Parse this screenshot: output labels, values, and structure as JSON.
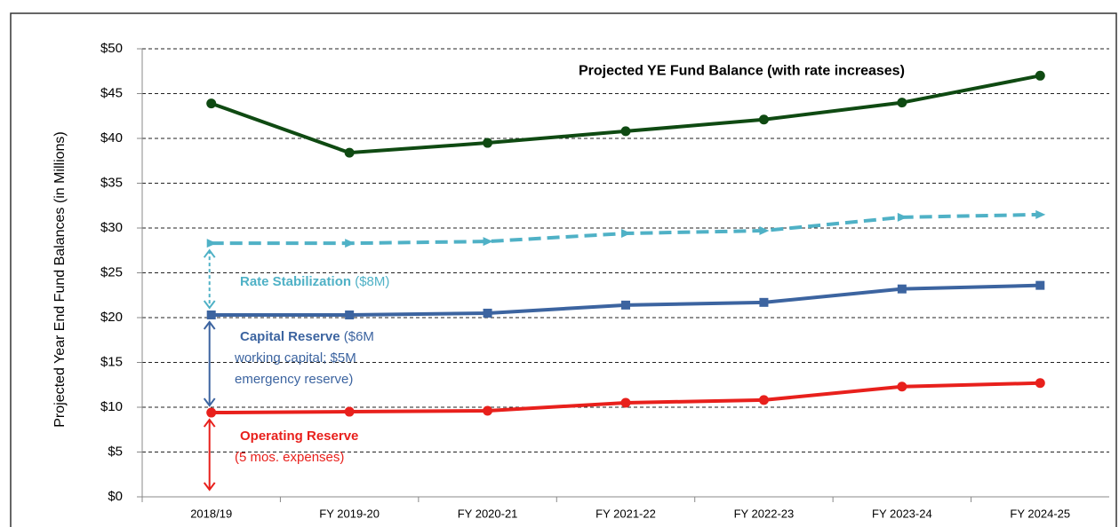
{
  "chart_data": {
    "type": "line",
    "y_label": "Projected Year End Fund Balances (in Millions)",
    "categories": [
      "2018/19",
      "FY 2019-20",
      "FY 2020-21",
      "FY 2021-22",
      "FY 2022-23",
      "FY 2023-24",
      "FY 2024-25"
    ],
    "ylim": [
      0,
      50
    ],
    "yticks": [
      {
        "value": 0,
        "label": "$0"
      },
      {
        "value": 5,
        "label": "$5"
      },
      {
        "value": 10,
        "label": "$10"
      },
      {
        "value": 15,
        "label": "$15"
      },
      {
        "value": 20,
        "label": "$20"
      },
      {
        "value": 25,
        "label": "$25"
      },
      {
        "value": 30,
        "label": "$30"
      },
      {
        "value": 35,
        "label": "$35"
      },
      {
        "value": 40,
        "label": "$40"
      },
      {
        "value": 45,
        "label": "$45"
      },
      {
        "value": 50,
        "label": "$50"
      }
    ],
    "grid": true,
    "series": [
      {
        "name": "Projected YE Fund Balance (with rate increases)",
        "color": "#0f4a12",
        "marker": "circle",
        "dashed": false,
        "values": [
          43.9,
          38.4,
          39.5,
          40.8,
          42.1,
          44.0,
          47.0
        ]
      },
      {
        "color": "#4fb1c6",
        "marker": "triangle",
        "dashed": true,
        "values": [
          28.3,
          28.3,
          28.5,
          29.4,
          29.7,
          31.2,
          31.5
        ]
      },
      {
        "color": "#3c64a0",
        "marker": "square",
        "dashed": false,
        "values": [
          20.3,
          20.3,
          20.5,
          21.4,
          21.7,
          23.2,
          23.6
        ]
      },
      {
        "color": "#e8201c",
        "marker": "circle",
        "dashed": false,
        "values": [
          9.4,
          9.5,
          9.6,
          10.5,
          10.8,
          12.3,
          12.7
        ]
      }
    ],
    "annotations": [
      {
        "bold": "Rate Stabilization",
        "lines": [
          " ($8M)"
        ],
        "color": "#4fb1c6"
      },
      {
        "bold": "Capital Reserve",
        "lines": [
          " ($6M",
          "working capital; $5M",
          "emergency reserve)"
        ],
        "color": "#3c64a0"
      },
      {
        "bold": "Operating Reserve",
        "lines": [
          "",
          "(5 mos. expenses)"
        ],
        "color": "#e8201c"
      }
    ]
  }
}
